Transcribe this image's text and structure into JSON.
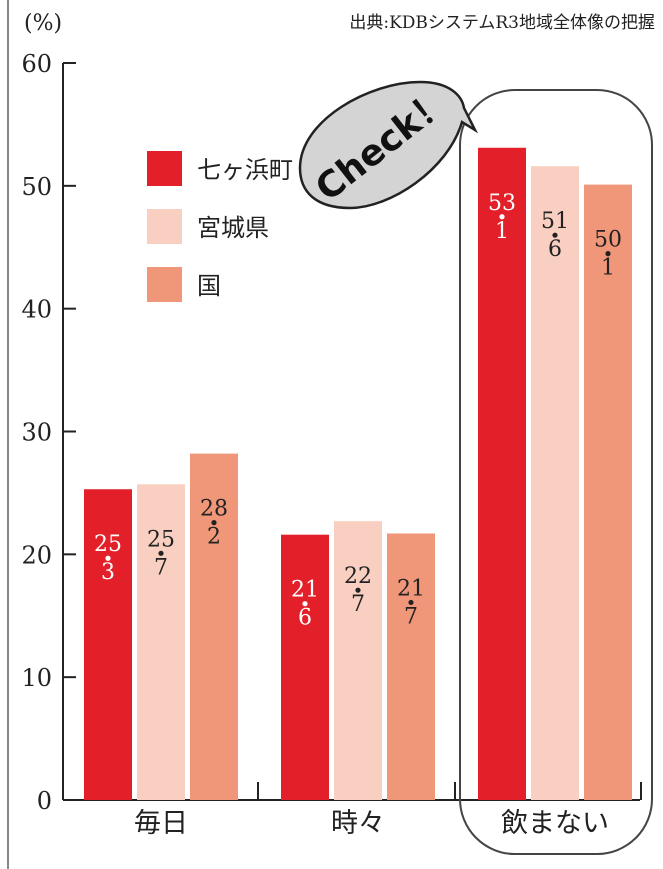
{
  "chart_data": {
    "type": "bar",
    "unit_label": "(%)",
    "source": "出典:KDBシステムR3地域全体像の把握",
    "categories": [
      "毎日",
      "時々",
      "飲まない"
    ],
    "series": [
      {
        "name": "七ヶ浜町",
        "values": [
          25.3,
          21.6,
          53.1
        ],
        "labels": [
          [
            "25",
            "3"
          ],
          [
            "21",
            "6"
          ],
          [
            "53",
            "1"
          ]
        ],
        "color": "#e3202a",
        "text_color": "#ffffff"
      },
      {
        "name": "宮城県",
        "values": [
          25.7,
          22.7,
          51.6
        ],
        "labels": [
          [
            "25",
            "7"
          ],
          [
            "22",
            "7"
          ],
          [
            "51",
            "6"
          ]
        ],
        "color": "#f8cfc0",
        "text_color": "#222222"
      },
      {
        "name": "国",
        "values": [
          28.2,
          21.7,
          50.1
        ],
        "labels": [
          [
            "28",
            "2"
          ],
          [
            "21",
            "7"
          ],
          [
            "50",
            "1"
          ]
        ],
        "color": "#f0977a",
        "text_color": "#222222"
      }
    ],
    "ylim": [
      0,
      60
    ],
    "yticks": [
      0,
      10,
      20,
      30,
      40,
      50,
      60
    ],
    "legend_position": "top-left",
    "grid": false,
    "callout": {
      "text": "Check！",
      "target_category": "飲まない"
    }
  }
}
